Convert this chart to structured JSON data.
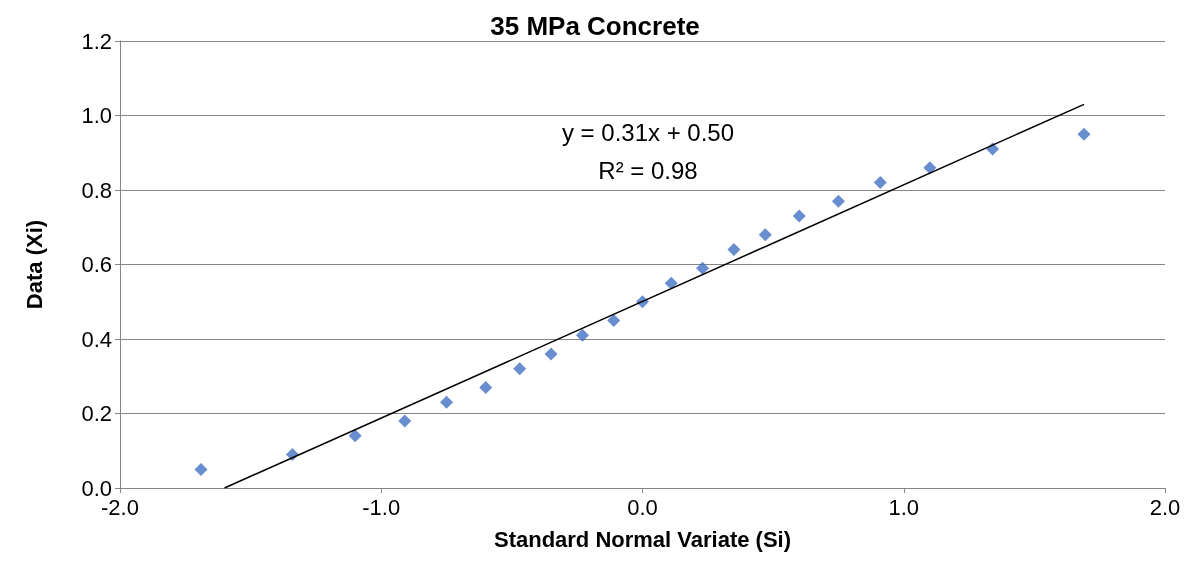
{
  "chart_data": {
    "type": "scatter",
    "title": "35 MPa Concrete",
    "xlabel": "Standard Normal Variate (Si)",
    "ylabel": "Data (Xi)",
    "annotations": [
      "y = 0.31x + 0.50",
      "R² = 0.98"
    ],
    "xlim": [
      -2,
      2
    ],
    "xticks": [
      {
        "value": -2,
        "label": "-2.0"
      },
      {
        "value": -1,
        "label": "-1.0"
      },
      {
        "value": 0,
        "label": "0.0"
      },
      {
        "value": 1,
        "label": "1.0"
      },
      {
        "value": 2,
        "label": "2.0"
      }
    ],
    "ylim": [
      0,
      1.2
    ],
    "yticks": [
      {
        "value": 0,
        "label": "0.0"
      },
      {
        "value": 0.2,
        "label": "0.2"
      },
      {
        "value": 0.4,
        "label": "0.4"
      },
      {
        "value": 0.6,
        "label": "0.6"
      },
      {
        "value": 0.8,
        "label": "0.8"
      },
      {
        "value": 1,
        "label": "1.0"
      },
      {
        "value": 1.2,
        "label": "1.2"
      }
    ],
    "grid": "y",
    "marker": "diamond",
    "series": [
      {
        "color": "#4472c4",
        "x": [
          -1.69,
          -1.34,
          -1.1,
          -0.91,
          -0.75,
          -0.6,
          -0.47,
          -0.35,
          -0.23,
          -0.11,
          0,
          0.11,
          0.23,
          0.35,
          0.47,
          0.6,
          0.75,
          0.91,
          1.1,
          1.34,
          1.69
        ],
        "values": [
          0.05,
          0.09,
          0.14,
          0.18,
          0.23,
          0.27,
          0.32,
          0.36,
          0.41,
          0.45,
          0.5,
          0.55,
          0.59,
          0.64,
          0.68,
          0.73,
          0.77,
          0.82,
          0.86,
          0.91,
          0.95
        ]
      },
      {
        "type": "line",
        "color": "#000000",
        "marker": "none",
        "x": [
          -1.6,
          1.69
        ],
        "values": [
          0,
          1.03
        ]
      }
    ]
  }
}
